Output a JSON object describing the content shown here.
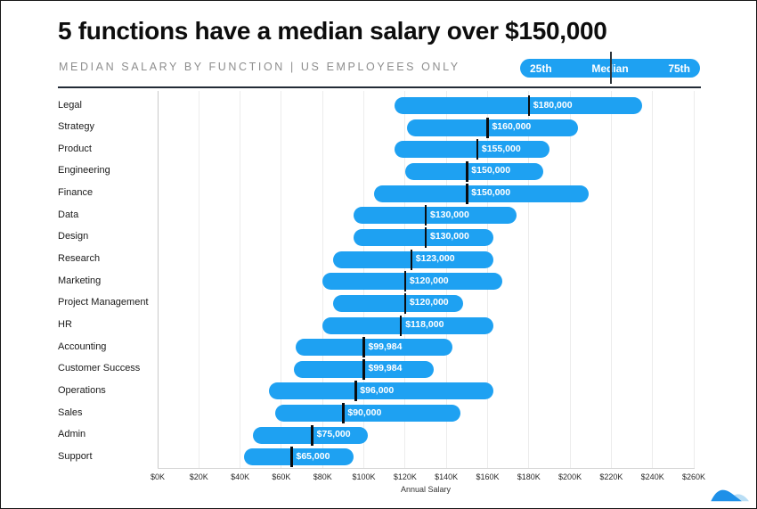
{
  "header": {
    "title": "5 functions have a median salary over $150,000",
    "subtitle": "MEDIAN SALARY BY FUNCTION | US EMPLOYEES ONLY",
    "legend": {
      "p25": "25th",
      "median": "Median",
      "p75": "75th"
    }
  },
  "colors": {
    "bar_blue": "#1ea1f2",
    "median_line": "#0a0d10",
    "header_rule": "#222b36",
    "subtitle_gray": "#8e8e8e",
    "gridline": "#ececec",
    "logo_light_blue": "#b9def5"
  },
  "chart_data": {
    "type": "range-bar",
    "title": "5 functions have a median salary over $150,000",
    "subtitle": "MEDIAN SALARY BY FUNCTION | US EMPLOYEES ONLY",
    "xlabel": "Annual Salary",
    "xlim": [
      0,
      260000
    ],
    "grid": true,
    "legend_position": "top-right",
    "legend_entries": [
      "25th",
      "Median",
      "75th"
    ],
    "categories": [
      "Legal",
      "Strategy",
      "Product",
      "Engineering",
      "Finance",
      "Data",
      "Design",
      "Research",
      "Marketing",
      "Project Management",
      "HR",
      "Accounting",
      "Customer Success",
      "Operations",
      "Sales",
      "Admin",
      "Support"
    ],
    "series": [
      {
        "name": "25th percentile",
        "values": [
          115000,
          121000,
          115000,
          120000,
          105000,
          95000,
          95000,
          85000,
          80000,
          85000,
          80000,
          67000,
          66000,
          54000,
          57000,
          46000,
          42000
        ]
      },
      {
        "name": "Median",
        "values": [
          180000,
          160000,
          155000,
          150000,
          150000,
          130000,
          130000,
          123000,
          120000,
          120000,
          118000,
          99984,
          99984,
          96000,
          90000,
          75000,
          65000
        ]
      },
      {
        "name": "75th percentile",
        "values": [
          235000,
          204000,
          190000,
          187000,
          209000,
          174000,
          163000,
          163000,
          167000,
          148000,
          163000,
          143000,
          134000,
          163000,
          147000,
          102000,
          95000
        ]
      }
    ],
    "median_labels": [
      "$180,000",
      "$160,000",
      "$155,000",
      "$150,000",
      "$150,000",
      "$130,000",
      "$130,000",
      "$123,000",
      "$120,000",
      "$120,000",
      "$118,000",
      "$99,984",
      "$99,984",
      "$96,000",
      "$90,000",
      "$75,000",
      "$65,000"
    ],
    "x_tick_labels": [
      "$0K",
      "$20K",
      "$40K",
      "$60K",
      "$80K",
      "$100K",
      "$120K",
      "$140K",
      "$160K",
      "$180K",
      "$200K",
      "$220K",
      "$240K",
      "$260K"
    ],
    "x_tick_values": [
      0,
      20000,
      40000,
      60000,
      80000,
      100000,
      120000,
      140000,
      160000,
      180000,
      200000,
      220000,
      240000,
      260000
    ]
  }
}
